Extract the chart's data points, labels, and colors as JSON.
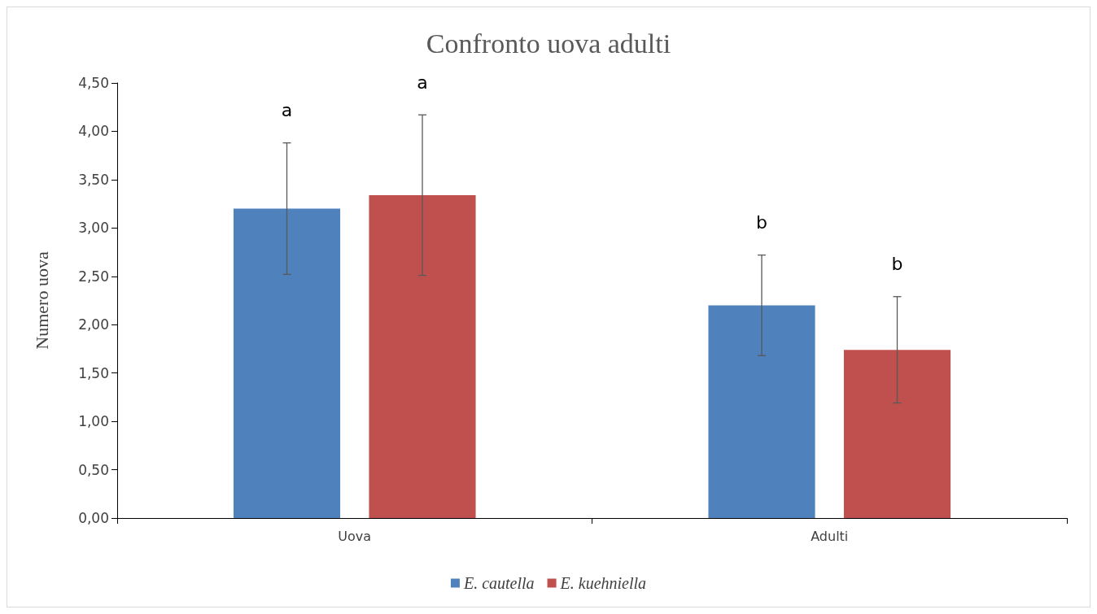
{
  "chart_data": {
    "type": "bar",
    "title": "Confronto uova adulti",
    "ylabel": "Numero uova",
    "categories": [
      "Uova",
      "Adulti"
    ],
    "series": [
      {
        "name": "E. cautella",
        "color": "#4f81bd",
        "values": [
          3.2,
          2.2
        ],
        "errors": [
          0.68,
          0.52
        ]
      },
      {
        "name": "E. kuehniella",
        "color": "#c0504d",
        "values": [
          3.34,
          1.74
        ],
        "errors": [
          0.83,
          0.55
        ]
      }
    ],
    "annotations": [
      "a",
      "a",
      "b",
      "b"
    ],
    "ylim": [
      0,
      4.5
    ],
    "yticks": [
      {
        "value": 0,
        "label": "0,00"
      },
      {
        "value": 0.5,
        "label": "0,50"
      },
      {
        "value": 1,
        "label": "1,00"
      },
      {
        "value": 1.5,
        "label": "1,50"
      },
      {
        "value": 2,
        "label": "2,00"
      },
      {
        "value": 2.5,
        "label": "2,50"
      },
      {
        "value": 3,
        "label": "3,00"
      },
      {
        "value": 3.5,
        "label": "3,50"
      },
      {
        "value": 4,
        "label": "4,00"
      },
      {
        "value": 4.5,
        "label": "4,50"
      }
    ],
    "grid": false,
    "legend": "bottom"
  }
}
